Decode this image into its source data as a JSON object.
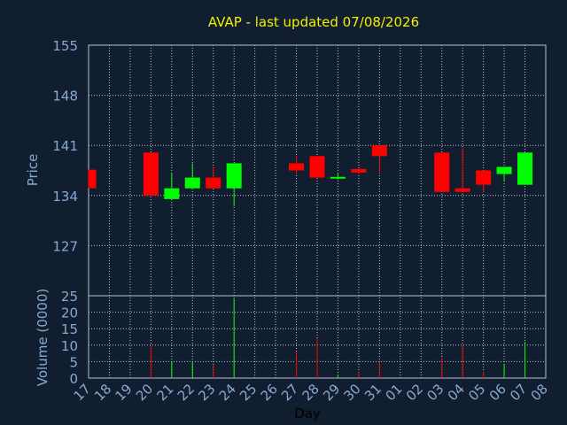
{
  "chart_data": {
    "type": "candlestick",
    "title": "AVAP - last updated 07/08/2026",
    "xlabel": "Day",
    "price_panel": {
      "ylabel": "Price",
      "ylim": [
        120,
        155
      ],
      "yticks": [
        "155",
        "148",
        "141",
        "134",
        "127"
      ],
      "ytick_values": [
        155,
        148,
        141,
        134,
        127
      ]
    },
    "volume_panel": {
      "ylabel": "Volume (0000)",
      "ylim": [
        0,
        25
      ],
      "yticks": [
        "25",
        "20",
        "15",
        "10",
        "5",
        "0"
      ],
      "ytick_values": [
        25,
        20,
        15,
        10,
        5,
        0
      ]
    },
    "x_tick_labels": [
      "17",
      "18",
      "19",
      "20",
      "21",
      "22",
      "23",
      "24",
      "25",
      "26",
      "27",
      "28",
      "29",
      "30",
      "31",
      "01",
      "02",
      "03",
      "04",
      "05",
      "06",
      "07",
      "08"
    ],
    "grid": true,
    "candles": [
      {
        "day": "17",
        "open": 137.6,
        "close": 135.0,
        "high": 137.6,
        "low": 135.0,
        "volume": 0
      },
      {
        "day": "20",
        "open": 140.0,
        "close": 134.0,
        "high": 140.0,
        "low": 134.0,
        "volume": 10
      },
      {
        "day": "21",
        "open": 133.5,
        "close": 135.0,
        "high": 137.2,
        "low": 133.5,
        "volume": 5
      },
      {
        "day": "22",
        "open": 135.0,
        "close": 136.5,
        "high": 138.5,
        "low": 135.0,
        "volume": 5
      },
      {
        "day": "23",
        "open": 136.5,
        "close": 135.0,
        "high": 138.0,
        "low": 135.0,
        "volume": 4
      },
      {
        "day": "24",
        "open": 135.0,
        "close": 138.5,
        "high": 138.5,
        "low": 132.5,
        "volume": 24
      },
      {
        "day": "27",
        "open": 138.5,
        "close": 137.5,
        "high": 139.5,
        "low": 137.0,
        "volume": 8
      },
      {
        "day": "28",
        "open": 139.5,
        "close": 136.5,
        "high": 139.5,
        "low": 136.5,
        "volume": 12
      },
      {
        "day": "29",
        "open": 136.4,
        "close": 136.6,
        "high": 137.2,
        "low": 136.2,
        "volume": 1
      },
      {
        "day": "30",
        "open": 137.7,
        "close": 137.2,
        "high": 137.7,
        "low": 137.0,
        "volume": 2
      },
      {
        "day": "31",
        "open": 141.0,
        "close": 139.5,
        "high": 141.0,
        "low": 137.0,
        "volume": 5
      },
      {
        "day": "03",
        "open": 140.0,
        "close": 134.5,
        "high": 140.0,
        "low": 134.5,
        "volume": 6
      },
      {
        "day": "04",
        "open": 135.0,
        "close": 134.5,
        "high": 140.7,
        "low": 134.5,
        "volume": 10
      },
      {
        "day": "05",
        "open": 137.5,
        "close": 135.5,
        "high": 137.5,
        "low": 134.5,
        "volume": 2
      },
      {
        "day": "06",
        "open": 137.0,
        "close": 138.0,
        "high": 138.0,
        "low": 136.0,
        "volume": 4
      },
      {
        "day": "07",
        "open": 135.5,
        "close": 140.0,
        "high": 140.0,
        "low": 135.5,
        "volume": 11
      }
    ]
  },
  "colors": {
    "background": "#111e30",
    "grid": "#b4c3d2",
    "axis_text": "#87a9d2",
    "title": "#f0f000",
    "up": "#00ff00",
    "down": "#ff0000",
    "label": "#000000"
  }
}
